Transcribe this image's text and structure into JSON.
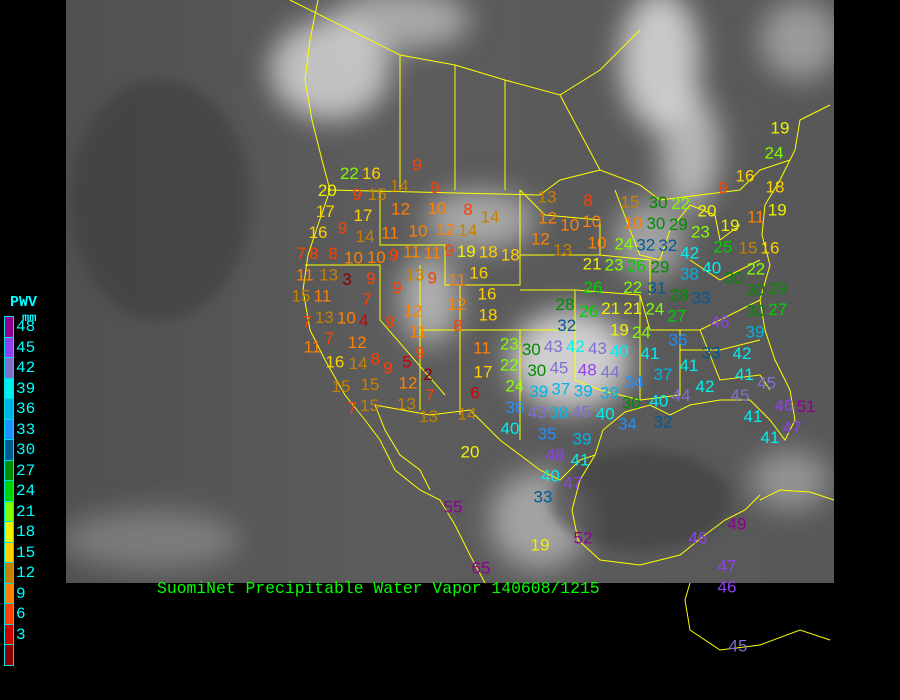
{
  "caption": "SuomiNet Precipitable Water Vapor 140608/1215",
  "legend": {
    "title": "PWV",
    "unit": "mm",
    "labels": [
      "48",
      "45",
      "42",
      "39",
      "36",
      "33",
      "30",
      "27",
      "24",
      "21",
      "18",
      "15",
      "12",
      "9",
      "6",
      "3"
    ],
    "colors": [
      "#900090",
      "#9040f0",
      "#8070d0",
      "#00f0f0",
      "#00b4e6",
      "#1e90ff",
      "#005a96",
      "#008c00",
      "#00d000",
      "#80ff00",
      "#f0f000",
      "#ffd000",
      "#c88000",
      "#ff8000",
      "#ff4000",
      "#d00000",
      "#8b0000"
    ]
  },
  "stations": [
    22,
    16,
    20,
    14,
    9,
    9,
    9,
    15,
    12,
    10,
    8,
    14,
    17,
    17,
    16,
    9,
    14,
    11,
    10,
    12,
    10,
    10,
    9,
    11,
    9,
    14,
    19,
    18,
    8,
    8,
    7,
    3,
    9,
    11,
    11,
    13,
    9,
    16,
    11,
    15,
    13,
    16,
    7,
    9,
    11,
    18,
    12,
    4,
    13,
    10,
    7,
    9,
    12,
    8,
    7,
    11,
    12,
    8,
    16,
    9,
    11,
    9,
    11,
    5,
    2,
    14,
    12,
    17,
    15,
    15,
    7,
    6,
    15,
    13,
    7,
    13,
    14,
    20,
    13,
    12,
    8,
    10,
    10,
    15,
    10,
    30,
    22,
    30,
    29,
    20,
    19,
    11,
    19,
    12,
    13,
    10,
    24,
    32,
    32,
    23,
    25,
    21,
    23,
    26,
    42,
    40,
    15,
    16,
    29,
    38,
    18,
    31,
    30,
    26,
    28,
    26,
    22,
    24,
    28,
    33,
    30,
    29,
    21,
    21,
    27,
    27,
    30,
    46,
    19,
    24,
    32,
    43,
    42,
    43,
    40,
    36,
    39,
    41,
    33,
    42,
    23,
    30,
    22,
    30,
    45,
    37,
    48,
    44,
    37,
    41,
    41,
    24,
    39,
    39,
    34,
    42,
    45,
    45,
    39,
    40,
    30,
    40,
    44,
    36,
    43,
    45,
    40,
    38,
    34,
    32,
    41,
    46,
    51,
    41,
    47,
    35,
    39,
    48,
    40,
    41,
    47,
    33,
    19,
    24,
    16,
    18,
    9,
    22,
    55,
    65,
    52,
    19,
    49,
    46,
    47,
    46,
    45
  ],
  "map": {
    "boundary_color": "#ffff00",
    "background": "satellite-infrared-imagery"
  }
}
